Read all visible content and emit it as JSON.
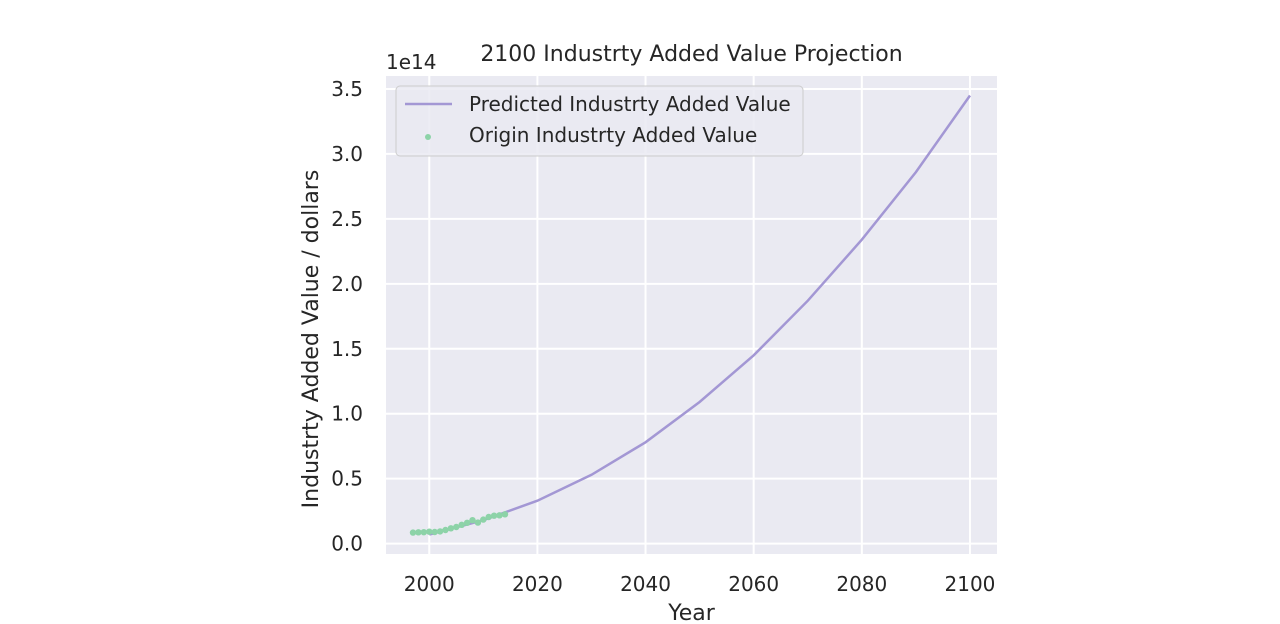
{
  "chart_data": {
    "type": "line",
    "title": "2100 Industrty Added Value Projection",
    "xlabel": "Year",
    "ylabel": "Industrty Added Value / dollars",
    "y_offset_label": "1e14",
    "xlim": [
      1992,
      2105
    ],
    "ylim": [
      -0.08,
      3.6
    ],
    "x_ticks": [
      2000,
      2020,
      2040,
      2060,
      2080,
      2100
    ],
    "y_ticks": [
      0.0,
      0.5,
      1.0,
      1.5,
      2.0,
      2.5,
      3.0,
      3.5
    ],
    "y_tick_labels": [
      "0.0",
      "0.5",
      "1.0",
      "1.5",
      "2.0",
      "2.5",
      "3.0",
      "3.5"
    ],
    "grid": true,
    "legend_position": "upper-left",
    "series": [
      {
        "name": "Predicted Industrty Added Value",
        "kind": "line",
        "color": "#a397d4",
        "x": [
          2000,
          2010,
          2020,
          2030,
          2040,
          2050,
          2060,
          2070,
          2080,
          2090,
          2100
        ],
        "y": [
          0.07,
          0.18,
          0.33,
          0.53,
          0.78,
          1.09,
          1.45,
          1.87,
          2.34,
          2.86,
          3.45
        ]
      },
      {
        "name": "Origin Industrty Added Value",
        "kind": "scatter",
        "color": "#8dd3a8",
        "x": [
          1997,
          1998,
          1999,
          2000,
          2001,
          2002,
          2003,
          2004,
          2005,
          2006,
          2007,
          2008,
          2009,
          2010,
          2011,
          2012,
          2013,
          2014
        ],
        "y": [
          0.085,
          0.087,
          0.088,
          0.092,
          0.089,
          0.094,
          0.105,
          0.118,
          0.128,
          0.145,
          0.16,
          0.18,
          0.162,
          0.185,
          0.205,
          0.215,
          0.218,
          0.226
        ]
      }
    ]
  }
}
